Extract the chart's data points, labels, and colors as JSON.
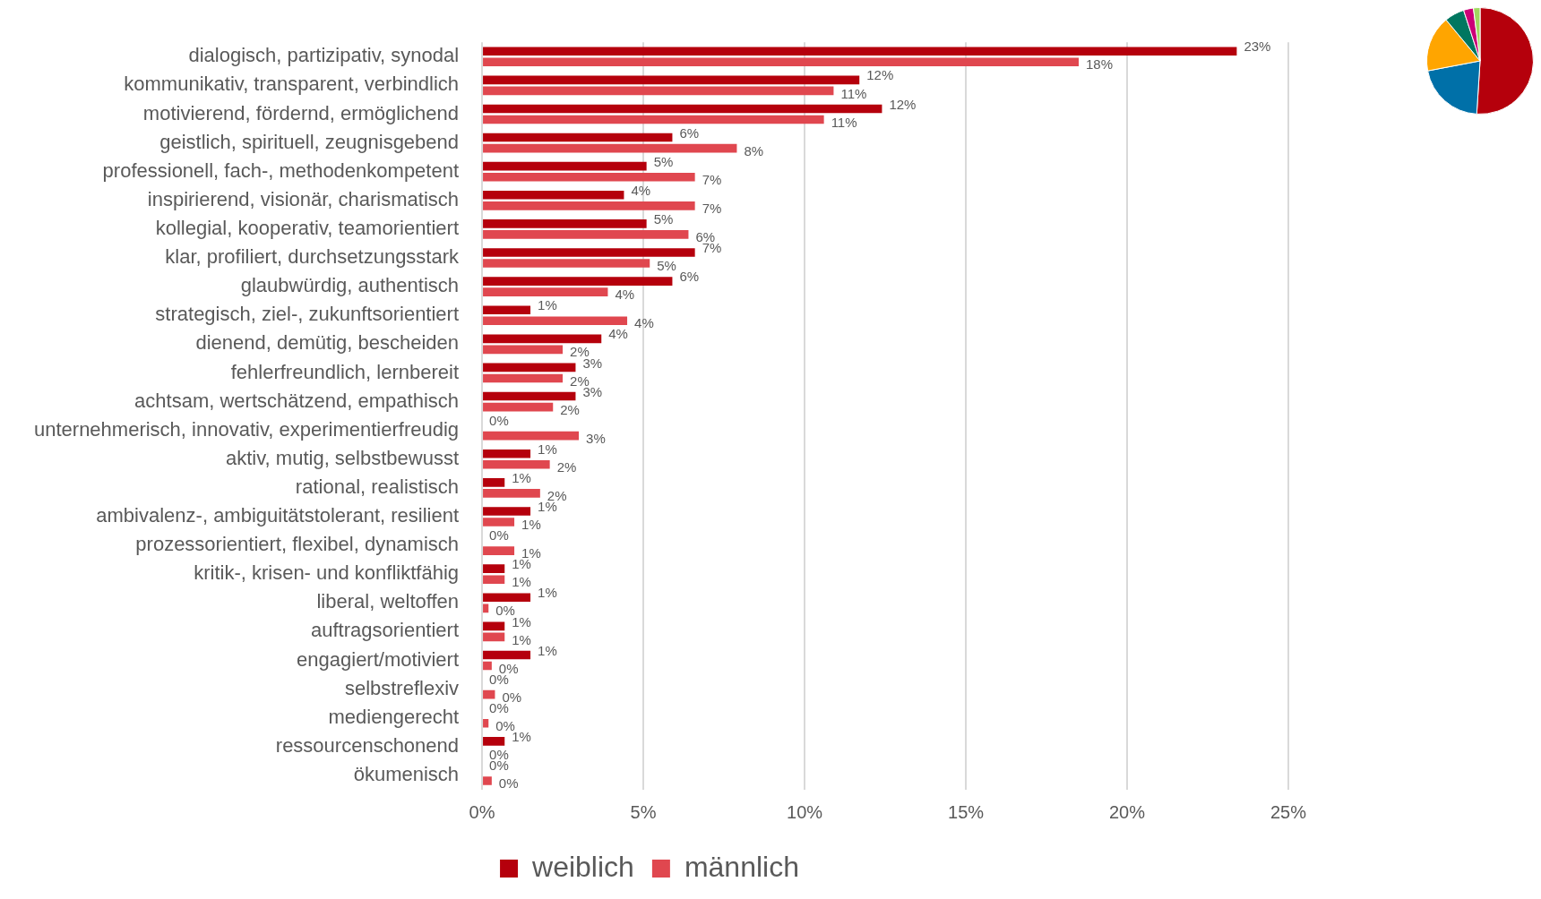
{
  "chart_data": [
    {
      "type": "bar",
      "orientation": "horizontal",
      "categories": [
        "dialogisch, partizipativ, synodal",
        "kommunikativ, transparent, verbindlich",
        "motivierend, fördernd, ermöglichend",
        "geistlich, spirituell, zeugnisgebend",
        "professionell, fach-, methodenkompetent",
        "inspirierend, visionär, charismatisch",
        "kollegial, kooperativ, teamorientiert",
        "klar, profiliert, durchsetzungsstark",
        "glaubwürdig, authentisch",
        "strategisch, ziel-, zukunftsorientiert",
        "dienend, demütig, bescheiden",
        "fehlerfreundlich, lernbereit",
        "achtsam, wertschätzend, empathisch",
        "unternehmerisch, innovativ, experimentierfreudig",
        "aktiv, mutig, selbstbewusst",
        "rational, realistisch",
        "ambivalenz-, ambiguitätstolerant, resilient",
        "prozessorientiert, flexibel, dynamisch",
        "kritik-, krisen- und konfliktfähig",
        "liberal, weltoffen",
        "auftragsorientiert",
        "engagiert/motiviert",
        "selbstreflexiv",
        "mediengerecht",
        "ressourcenschonend",
        "ökumenisch"
      ],
      "series": [
        {
          "name": "weiblich",
          "color": "#b5000c",
          "values": [
            23.4,
            11.7,
            12.4,
            5.9,
            5.1,
            4.4,
            5.1,
            6.6,
            5.9,
            1.5,
            3.7,
            2.9,
            2.9,
            0,
            1.5,
            0.7,
            1.5,
            0,
            0.7,
            1.5,
            0.7,
            1.5,
            0,
            0,
            0.7,
            0
          ],
          "value_labels": [
            "23%",
            "12%",
            "12%",
            "6%",
            "5%",
            "4%",
            "5%",
            "7%",
            "6%",
            "1%",
            "4%",
            "3%",
            "3%",
            "0%",
            "1%",
            "1%",
            "1%",
            "0%",
            "1%",
            "1%",
            "1%",
            "1%",
            "0%",
            "0%",
            "1%",
            "0%"
          ]
        },
        {
          "name": "männlich",
          "color": "#e0474f",
          "values": [
            18.5,
            10.9,
            10.6,
            7.9,
            6.6,
            6.6,
            6.4,
            5.2,
            3.9,
            4.5,
            2.5,
            2.5,
            2.2,
            3.0,
            2.1,
            1.8,
            1.0,
            1.0,
            0.7,
            0.2,
            0.7,
            0.3,
            0.4,
            0.2,
            0,
            0.3
          ],
          "value_labels": [
            "18%",
            "11%",
            "11%",
            "8%",
            "7%",
            "7%",
            "6%",
            "5%",
            "4%",
            "4%",
            "2%",
            "2%",
            "2%",
            "3%",
            "2%",
            "2%",
            "1%",
            "1%",
            "1%",
            "0%",
            "1%",
            "0%",
            "0%",
            "0%",
            "0%",
            "0%"
          ]
        }
      ],
      "xlim": [
        0,
        25
      ],
      "xticks": [
        {
          "value": 0,
          "label": "0%"
        },
        {
          "value": 5,
          "label": "5%"
        },
        {
          "value": 10,
          "label": "10%"
        },
        {
          "value": 15,
          "label": "15%"
        },
        {
          "value": 20,
          "label": "20%"
        },
        {
          "value": 25,
          "label": "25%"
        }
      ],
      "grid": "x",
      "legend": "bottom"
    },
    {
      "type": "pie",
      "categories": [
        null,
        null,
        null,
        null,
        null,
        null
      ],
      "values": [
        51,
        21,
        17,
        6,
        3,
        2
      ],
      "colors": [
        "#b5000c",
        "#0070a8",
        "#ffa500",
        "#007760",
        "#cc0077",
        "#a0d860"
      ]
    }
  ]
}
